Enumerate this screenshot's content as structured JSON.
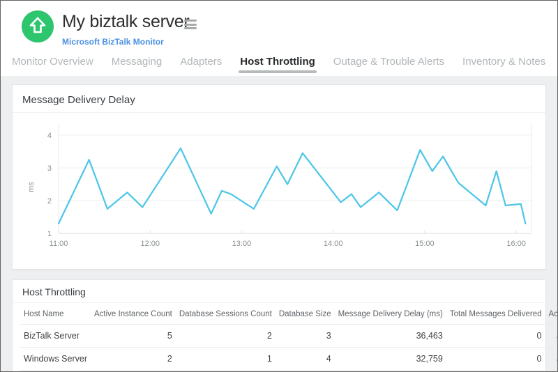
{
  "header": {
    "title": "My biztalk server",
    "subtitle": "Microsoft BizTalk Monitor",
    "colors": {
      "avatar_green": "#2EC56F",
      "subtitle_blue": "#4a90e2"
    }
  },
  "tabs": {
    "items": [
      {
        "label": "Monitor Overview",
        "active": false
      },
      {
        "label": "Messaging",
        "active": false
      },
      {
        "label": "Adapters",
        "active": false
      },
      {
        "label": "Host Throttling",
        "active": true
      },
      {
        "label": "Outage & Trouble Alerts",
        "active": false
      },
      {
        "label": "Inventory & Notes",
        "active": false
      }
    ]
  },
  "chart_card": {
    "title": "Message Delivery Delay"
  },
  "chart_data": {
    "type": "line",
    "title": "Message Delivery Delay",
    "xlabel": "",
    "ylabel": "ms",
    "ylim": [
      1,
      4
    ],
    "yticks": [
      1,
      2,
      3,
      4
    ],
    "xticks": [
      {
        "pos": 0,
        "label": "11:00"
      },
      {
        "pos": 60,
        "label": "12:00"
      },
      {
        "pos": 120,
        "label": "13:00"
      },
      {
        "pos": 180,
        "label": "14:00"
      },
      {
        "pos": 240,
        "label": "15:00"
      },
      {
        "pos": 300,
        "label": "16:00"
      }
    ],
    "x_range_minutes": [
      0,
      310
    ],
    "grid": true,
    "legend": "none",
    "line_color": "#4EC6E8",
    "x_minutes": [
      0,
      20,
      32,
      45,
      55,
      80,
      100,
      107,
      113,
      128,
      143,
      150,
      160,
      185,
      192,
      198,
      210,
      222,
      237,
      245,
      252,
      262,
      280,
      287,
      293,
      303,
      306
    ],
    "y_ms": [
      1.3,
      3.25,
      1.75,
      2.25,
      1.8,
      3.6,
      1.6,
      2.3,
      2.2,
      1.75,
      3.05,
      2.5,
      3.45,
      1.95,
      2.2,
      1.8,
      2.25,
      1.7,
      3.55,
      2.9,
      3.35,
      2.55,
      1.85,
      2.9,
      1.85,
      1.9,
      1.3
    ]
  },
  "table_card": {
    "title": "Host Throttling",
    "columns": [
      "Host Name",
      "Active Instance Count",
      "Database Sessions Count",
      "Database Size",
      "Message Delivery Delay (ms)",
      "Total Messages Delivered",
      "Action"
    ],
    "rows": [
      {
        "host_name": "BizTalk Server",
        "active_instance_count": "5",
        "database_sessions_count": "2",
        "database_size": "3",
        "message_delivery_delay_ms": "36,463",
        "total_messages_delivered": "0",
        "action_icon": "pencil-edit-icon"
      },
      {
        "host_name": "Windows Server",
        "active_instance_count": "2",
        "database_sessions_count": "1",
        "database_size": "4",
        "message_delivery_delay_ms": "32,759",
        "total_messages_delivered": "0",
        "action_icon": "pencil-edit-icon"
      }
    ]
  }
}
